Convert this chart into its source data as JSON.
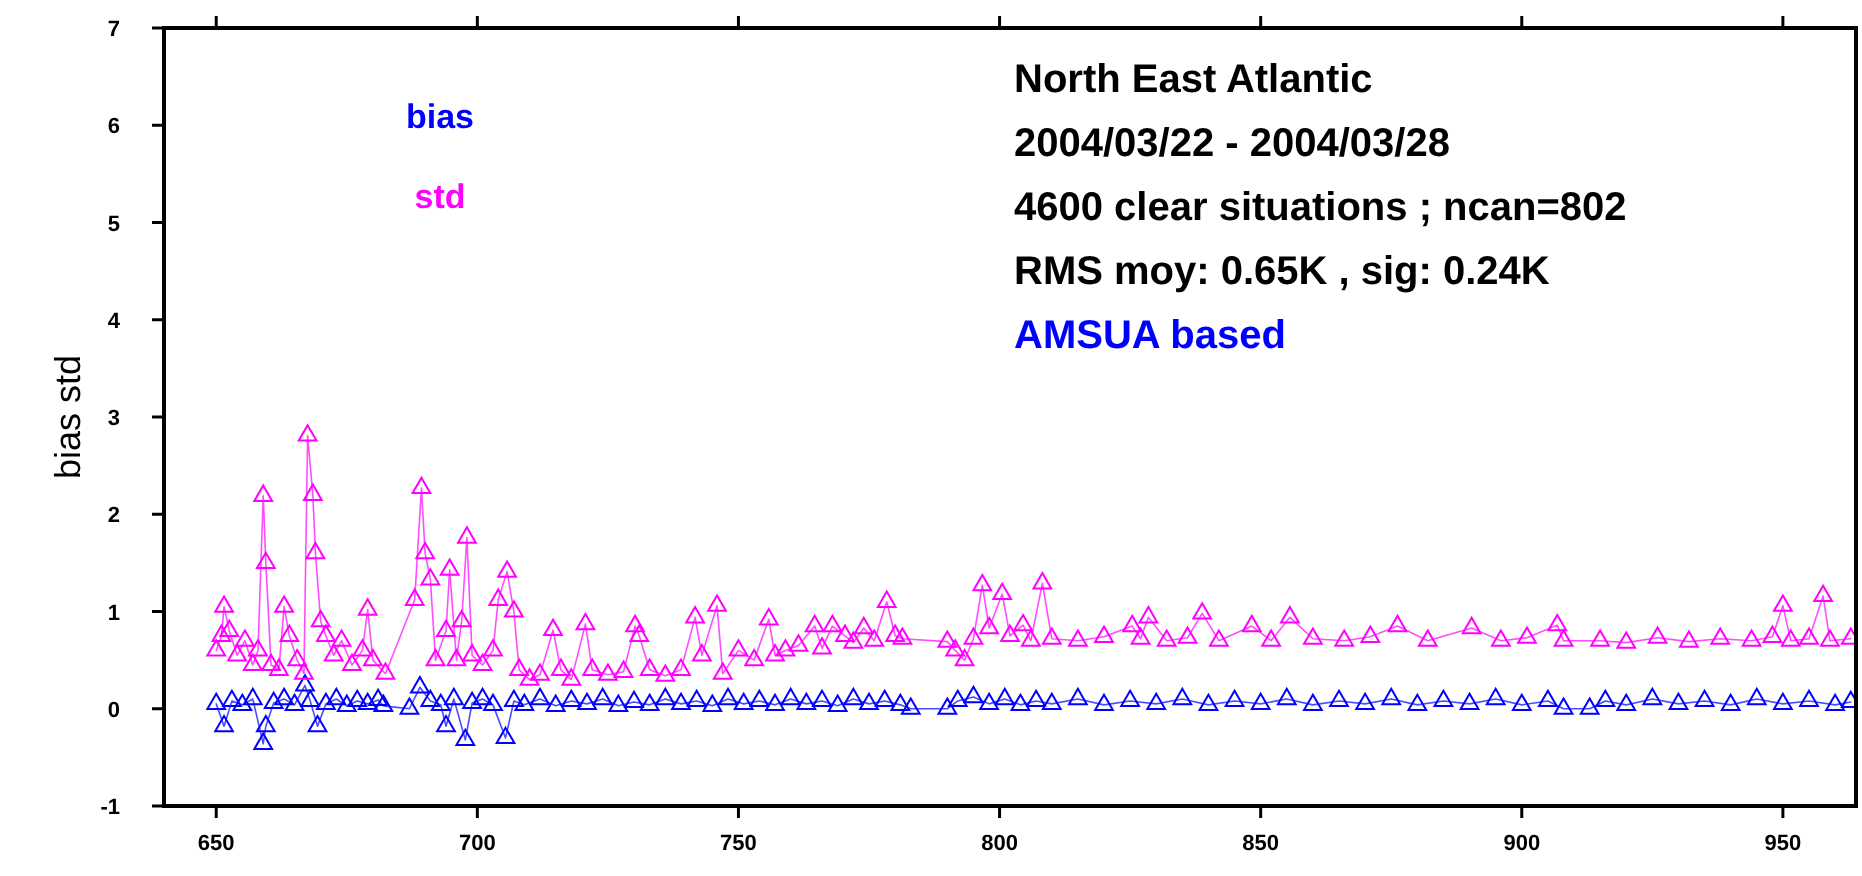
{
  "chart_data": {
    "type": "line",
    "ylabel": "bias std",
    "xlim": [
      640,
      964
    ],
    "ylim": [
      -1,
      7
    ],
    "xticks": [
      650,
      700,
      750,
      800,
      850,
      900,
      950
    ],
    "yticks": [
      -1,
      0,
      1,
      2,
      3,
      4,
      5,
      6,
      7
    ],
    "marker": "triangle",
    "legend": "top left",
    "grid": false,
    "annotations": [
      "North East Atlantic",
      "2004/03/22 - 2004/03/28",
      "4600 clear situations ; ncan=802",
      "RMS moy: 0.65K , sig: 0.24K",
      "AMSUA based"
    ],
    "series": [
      {
        "name": "bias",
        "color": "#0000ff",
        "x": [
          650,
          651.5,
          653,
          655,
          657,
          659,
          659.5,
          661,
          663,
          665,
          667,
          668,
          669.4,
          671,
          673,
          675,
          677,
          679,
          681,
          682,
          687,
          689,
          691,
          693,
          694,
          695.5,
          697.7,
          699,
          701,
          703,
          705.4,
          707,
          709,
          712,
          715,
          718,
          721,
          724,
          727,
          730,
          733,
          736,
          739,
          742,
          745,
          748,
          751,
          754,
          757,
          760,
          763,
          766,
          769,
          772,
          775,
          778,
          781,
          783,
          790,
          792,
          795,
          798,
          801,
          804,
          807,
          810,
          815,
          820,
          825,
          830,
          835,
          840,
          845,
          850,
          855,
          860,
          865,
          870,
          875,
          880,
          885,
          890,
          895,
          900,
          905,
          908,
          913,
          916,
          920,
          925,
          930,
          935,
          940,
          945,
          950,
          955,
          960,
          963
        ],
        "values": [
          0.05,
          -0.18,
          0.08,
          0.04,
          0.1,
          -0.36,
          -0.18,
          0.06,
          0.1,
          0.04,
          0.24,
          0.08,
          -0.18,
          0.05,
          0.1,
          0.03,
          0.08,
          0.05,
          0.09,
          0.03,
          0.0,
          0.22,
          0.08,
          0.04,
          -0.18,
          0.1,
          -0.32,
          0.06,
          0.1,
          0.04,
          -0.3,
          0.08,
          0.04,
          0.1,
          0.03,
          0.08,
          0.05,
          0.1,
          0.03,
          0.07,
          0.04,
          0.1,
          0.05,
          0.08,
          0.03,
          0.1,
          0.05,
          0.08,
          0.04,
          0.1,
          0.05,
          0.08,
          0.03,
          0.1,
          0.05,
          0.08,
          0.04,
          0.0,
          0.0,
          0.08,
          0.12,
          0.05,
          0.1,
          0.04,
          0.08,
          0.05,
          0.1,
          0.04,
          0.08,
          0.05,
          0.1,
          0.04,
          0.08,
          0.05,
          0.1,
          0.04,
          0.08,
          0.05,
          0.1,
          0.04,
          0.08,
          0.05,
          0.1,
          0.04,
          0.08,
          0.0,
          0.0,
          0.08,
          0.04,
          0.1,
          0.05,
          0.08,
          0.04,
          0.1,
          0.05,
          0.08,
          0.04,
          0.07
        ]
      },
      {
        "name": "std",
        "color": "#ff00ff",
        "x": [
          650,
          651,
          651.5,
          652.5,
          654,
          655.5,
          657,
          658,
          659,
          659.5,
          660.5,
          662,
          663,
          664,
          665.5,
          666.8,
          667.5,
          668.5,
          669,
          670,
          671,
          672.5,
          674,
          676,
          678,
          679,
          680,
          682.4,
          688,
          689.3,
          690,
          691,
          692,
          694,
          694.7,
          696,
          697,
          698,
          699,
          701,
          703,
          704,
          705.7,
          707,
          708,
          710,
          712,
          714.5,
          716,
          718,
          720.7,
          722,
          725,
          728,
          730.2,
          731,
          733,
          736,
          739,
          741.7,
          743,
          745.9,
          747,
          750,
          753,
          755.8,
          757,
          759,
          761.5,
          764.6,
          766,
          768,
          770.4,
          772,
          774,
          776,
          778.4,
          780,
          781.4,
          790,
          791.5,
          793.3,
          795,
          796.7,
          798,
          800.5,
          802,
          804.5,
          806,
          808.2,
          810,
          815,
          820,
          825.4,
          827,
          828.5,
          832,
          836,
          838.8,
          842,
          848.3,
          852,
          855.6,
          860,
          866,
          871,
          876.2,
          882,
          890.4,
          896,
          901,
          906.8,
          908,
          915,
          920,
          926,
          932,
          938,
          944,
          948,
          950,
          951.5,
          955,
          957.7,
          959,
          963
        ],
        "values": [
          0.6,
          0.75,
          1.05,
          0.8,
          0.55,
          0.7,
          0.45,
          0.6,
          2.19,
          1.5,
          0.45,
          0.4,
          1.05,
          0.75,
          0.5,
          0.36,
          2.81,
          2.2,
          1.6,
          0.9,
          0.75,
          0.55,
          0.7,
          0.45,
          0.6,
          1.02,
          0.5,
          0.36,
          1.12,
          2.27,
          1.6,
          1.33,
          0.5,
          0.8,
          1.43,
          0.5,
          0.9,
          1.76,
          0.55,
          0.45,
          0.6,
          1.12,
          1.41,
          1.0,
          0.4,
          0.3,
          0.35,
          0.81,
          0.4,
          0.3,
          0.87,
          0.4,
          0.35,
          0.38,
          0.85,
          0.75,
          0.4,
          0.34,
          0.4,
          0.94,
          0.55,
          1.06,
          0.36,
          0.6,
          0.5,
          0.92,
          0.55,
          0.6,
          0.65,
          0.85,
          0.62,
          0.85,
          0.75,
          0.68,
          0.83,
          0.7,
          1.1,
          0.75,
          0.72,
          0.69,
          0.6,
          0.5,
          0.72,
          1.27,
          0.83,
          1.18,
          0.75,
          0.86,
          0.7,
          1.29,
          0.72,
          0.7,
          0.74,
          0.85,
          0.72,
          0.94,
          0.7,
          0.73,
          0.98,
          0.7,
          0.85,
          0.7,
          0.94,
          0.72,
          0.7,
          0.74,
          0.85,
          0.7,
          0.83,
          0.7,
          0.73,
          0.86,
          0.7,
          0.7,
          0.68,
          0.73,
          0.69,
          0.72,
          0.7,
          0.74,
          1.06,
          0.7,
          0.72,
          1.16,
          0.7,
          0.72
        ]
      }
    ]
  }
}
